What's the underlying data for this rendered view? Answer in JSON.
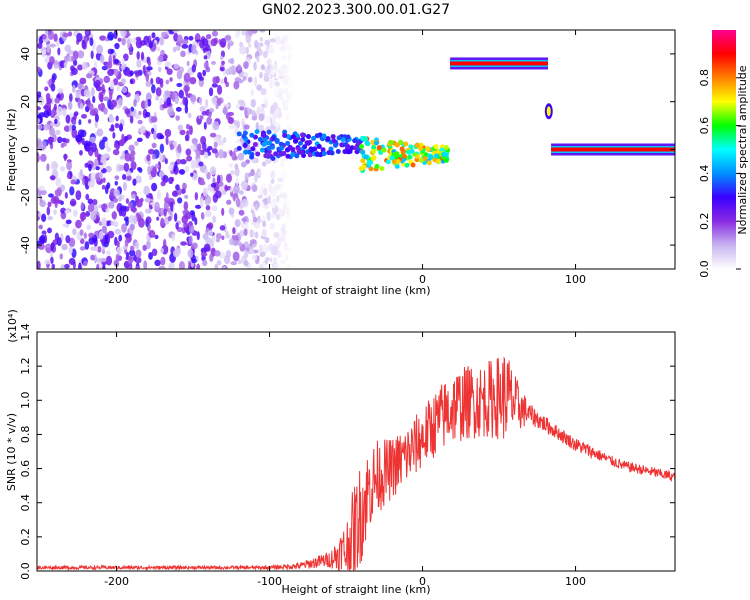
{
  "title": "GN02.2023.300.00.01.G27",
  "chart_data": [
    {
      "type": "heatmap",
      "xlabel": "Height of straight line (km)",
      "ylabel": "Frequency (Hz)",
      "xlim": [
        -252,
        165
      ],
      "ylim": [
        -50,
        50
      ],
      "x_ticks": [
        -200,
        -100,
        0,
        100
      ],
      "x_tick_labels": [
        "-200",
        "-100",
        "0",
        "100"
      ],
      "y_ticks": [
        -40,
        -20,
        0,
        20,
        40
      ],
      "y_tick_labels": [
        "-40",
        "-20",
        "0",
        "20",
        "40"
      ],
      "grid": false,
      "colorbar": {
        "label": "Normalized spectral amplitude",
        "range": [
          0.0,
          1.0
        ],
        "ticks": [
          0.0,
          0.2,
          0.4,
          0.6,
          0.8
        ],
        "tick_labels": [
          "0.0",
          "0.2",
          "0.4",
          "0.6",
          "0.8"
        ],
        "colormap": [
          "#ffffff",
          "#c8b4f0",
          "#8a2be2",
          "#3a00ff",
          "#0090ff",
          "#00ffff",
          "#00ff00",
          "#ffff00",
          "#ff8000",
          "#ff0000",
          "#ff0090"
        ]
      },
      "features": [
        {
          "region": "noise",
          "x": [
            -252,
            -85
          ],
          "y": [
            -50,
            50
          ],
          "amplitude": 0.15
        },
        {
          "region": "track",
          "x": [
            -120,
            -40
          ],
          "y_center": 2,
          "amplitude": 0.35
        },
        {
          "region": "track",
          "x": [
            -40,
            17
          ],
          "y_center": -2,
          "amplitude": 0.7
        },
        {
          "region": "line",
          "x": [
            18,
            82
          ],
          "y": 36,
          "amplitude": 0.9
        },
        {
          "region": "blob",
          "x": [
            80,
            85
          ],
          "y": 16,
          "amplitude": 0.7
        },
        {
          "region": "line",
          "x": [
            84,
            165
          ],
          "y": 0,
          "amplitude": 0.9
        }
      ]
    },
    {
      "type": "line",
      "xlabel": "Height of straight line (km)",
      "ylabel": "SNR (10 * v/v)",
      "y_scale_label": "(x10⁴)",
      "xlim": [
        -252,
        165
      ],
      "ylim": [
        0.0,
        1.4
      ],
      "x_ticks": [
        -200,
        -100,
        0,
        100
      ],
      "x_tick_labels": [
        "-200",
        "-100",
        "0",
        "100"
      ],
      "y_ticks": [
        0.0,
        0.2,
        0.4,
        0.6,
        0.8,
        1.0,
        1.2,
        1.4
      ],
      "y_tick_labels": [
        "0.0",
        "0.2",
        "0.4",
        "0.6",
        "0.8",
        "1.0",
        "1.2",
        "1.4"
      ],
      "grid": false,
      "color": "#ee3333",
      "x": [
        -252,
        -200,
        -150,
        -100,
        -80,
        -60,
        -50,
        -45,
        -40,
        -35,
        -30,
        -20,
        -10,
        0,
        10,
        20,
        30,
        40,
        50,
        55,
        60,
        70,
        80,
        90,
        100,
        110,
        120,
        130,
        140,
        150,
        165
      ],
      "y": [
        0.02,
        0.02,
        0.02,
        0.02,
        0.03,
        0.07,
        0.12,
        0.22,
        0.35,
        0.48,
        0.55,
        0.6,
        0.68,
        0.78,
        0.88,
        0.96,
        0.99,
        1.0,
        1.02,
        1.03,
        0.98,
        0.92,
        0.86,
        0.8,
        0.74,
        0.7,
        0.66,
        0.62,
        0.6,
        0.58,
        0.55
      ],
      "noise": [
        0.01,
        0.01,
        0.01,
        0.01,
        0.02,
        0.05,
        0.18,
        0.28,
        0.3,
        0.25,
        0.22,
        0.18,
        0.18,
        0.18,
        0.2,
        0.22,
        0.22,
        0.22,
        0.25,
        0.28,
        0.18,
        0.06,
        0.05,
        0.04,
        0.04,
        0.04,
        0.03,
        0.03,
        0.03,
        0.03,
        0.03
      ]
    }
  ]
}
